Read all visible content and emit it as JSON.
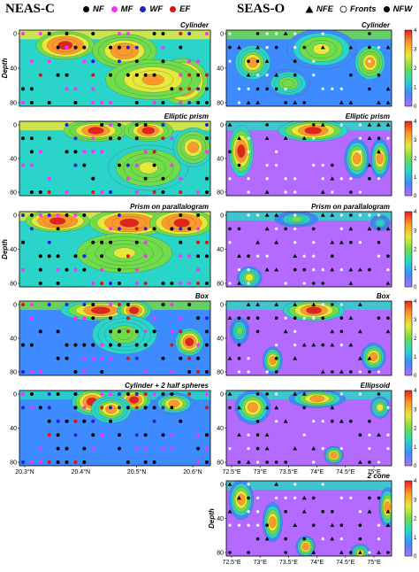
{
  "headers": {
    "left": "NEAS-C",
    "right": "SEAS-O"
  },
  "legend_left": [
    {
      "label": "NF",
      "color": "#000000",
      "icon": "filled-circle"
    },
    {
      "label": "MF",
      "color": "#ff2fff",
      "icon": "filled-circle"
    },
    {
      "label": "WF",
      "color": "#1c22d8",
      "icon": "filled-circle"
    },
    {
      "label": "EF",
      "color": "#e01010",
      "icon": "filled-circle"
    }
  ],
  "legend_right": [
    {
      "label": "NFE",
      "color": "#000000",
      "icon": "filled-triangle"
    },
    {
      "label": "Fronts",
      "color": "#ffffff",
      "icon": "open-circle"
    },
    {
      "label": "NFW",
      "color": "#000000",
      "icon": "filled-circle"
    }
  ],
  "chart_data": [
    {
      "id": "L1",
      "type": "heatmap",
      "title": "Cylinder",
      "ylabel": "Depth",
      "yticks": [
        "0",
        "40",
        "80"
      ],
      "xticks": [],
      "hotspots": [
        [
          0.15,
          0.1,
          0.18,
          0.2,
          4
        ],
        [
          0.45,
          0.15,
          0.2,
          0.25,
          3.5
        ],
        [
          0.78,
          0.5,
          0.15,
          0.35,
          4
        ],
        [
          0.55,
          0.5,
          0.3,
          0.3,
          3
        ]
      ],
      "base": 1.5,
      "markers": "L"
    },
    {
      "id": "L2",
      "type": "heatmap",
      "title": "Elliptic prism",
      "ylabel": "",
      "yticks": [
        "0",
        "40",
        "80"
      ],
      "xticks": [],
      "hotspots": [
        [
          0.3,
          0.05,
          0.2,
          0.15,
          4
        ],
        [
          0.6,
          0.05,
          0.15,
          0.15,
          4
        ],
        [
          0.55,
          0.45,
          0.25,
          0.35,
          2.5
        ],
        [
          0.85,
          0.2,
          0.12,
          0.3,
          3
        ]
      ],
      "base": 1.2,
      "markers": "L"
    },
    {
      "id": "L3",
      "type": "heatmap",
      "title": "Prism on parallalogram",
      "ylabel": "Depth",
      "yticks": [
        "0",
        "40",
        "80"
      ],
      "xticks": [],
      "hotspots": [
        [
          0.1,
          0.05,
          0.2,
          0.15,
          4
        ],
        [
          0.45,
          0.05,
          0.25,
          0.2,
          4
        ],
        [
          0.75,
          0.05,
          0.2,
          0.2,
          4
        ],
        [
          0.4,
          0.4,
          0.3,
          0.3,
          2.5
        ]
      ],
      "base": 1.6,
      "markers": "L"
    },
    {
      "id": "L4",
      "type": "heatmap",
      "title": "Box",
      "ylabel": "",
      "yticks": [
        "0",
        "40",
        "80"
      ],
      "xticks": [],
      "hotspots": [
        [
          0.3,
          0.05,
          0.25,
          0.15,
          4
        ],
        [
          0.55,
          0.05,
          0.1,
          0.15,
          4
        ],
        [
          0.85,
          0.45,
          0.08,
          0.2,
          4
        ],
        [
          0.45,
          0.3,
          0.2,
          0.3,
          2
        ]
      ],
      "base": 0.9,
      "markers": "L"
    },
    {
      "id": "L5",
      "type": "heatmap",
      "title": "Cylinder + 2 half spheres",
      "ylabel": "",
      "yticks": [
        "0",
        "40",
        "80"
      ],
      "xticks": [
        "20.3°N",
        "20.4°N",
        "20.5°N",
        "20.6°N"
      ],
      "hotspots": [
        [
          0.32,
          0.05,
          0.12,
          0.2,
          4
        ],
        [
          0.55,
          0.05,
          0.1,
          0.15,
          4
        ],
        [
          0.42,
          0.15,
          0.12,
          0.2,
          3.5
        ],
        [
          0.75,
          0.1,
          0.12,
          0.15,
          3
        ]
      ],
      "base": 0.4,
      "markers": "L"
    },
    {
      "id": "R1",
      "type": "heatmap",
      "title": "Cylinder",
      "ylabel": "",
      "yticks": [
        "0",
        "40",
        "80"
      ],
      "xticks": [],
      "hotspots": [
        [
          0.1,
          0.3,
          0.12,
          0.25,
          3
        ],
        [
          0.45,
          0.1,
          0.25,
          0.3,
          2.5
        ],
        [
          0.82,
          0.3,
          0.1,
          0.25,
          3.5
        ],
        [
          0.3,
          0.6,
          0.15,
          0.2,
          2
        ]
      ],
      "base": 0.5,
      "markers": "R"
    },
    {
      "id": "R2",
      "type": "heatmap",
      "title": "Elliptic prism",
      "ylabel": "",
      "yticks": [
        "0",
        "40",
        "80"
      ],
      "xticks": [],
      "hotspots": [
        [
          0.05,
          0.2,
          0.08,
          0.4,
          4
        ],
        [
          0.4,
          0.05,
          0.25,
          0.15,
          4
        ],
        [
          0.75,
          0.35,
          0.08,
          0.3,
          3
        ],
        [
          0.9,
          0.35,
          0.06,
          0.3,
          3
        ]
      ],
      "base": 0.3,
      "markers": "R"
    },
    {
      "id": "R3",
      "type": "heatmap",
      "title": "Prism on parallalogram",
      "ylabel": "",
      "yticks": [
        "0",
        "40",
        "80"
      ],
      "xticks": [],
      "hotspots": [
        [
          0.1,
          0.8,
          0.08,
          0.15,
          2.5
        ],
        [
          0.35,
          0.05,
          0.15,
          0.1,
          2
        ],
        [
          0.9,
          0.1,
          0.06,
          0.1,
          1.5
        ]
      ],
      "base": 0.2,
      "markers": "R"
    },
    {
      "id": "R4",
      "type": "heatmap",
      "title": "Box",
      "ylabel": "",
      "yticks": [
        "0",
        "40",
        "80"
      ],
      "xticks": [],
      "hotspots": [
        [
          0.25,
          0.7,
          0.06,
          0.2,
          3
        ],
        [
          0.42,
          0.05,
          0.22,
          0.15,
          4
        ],
        [
          0.85,
          0.65,
          0.08,
          0.2,
          3
        ],
        [
          0.05,
          0.3,
          0.06,
          0.2,
          2
        ]
      ],
      "base": 0.3,
      "markers": "R"
    },
    {
      "id": "R5",
      "type": "heatmap",
      "title": "Ellipsoid",
      "ylabel": "",
      "yticks": [
        "0",
        "40",
        "80"
      ],
      "xticks": [
        "72.5°E",
        "73°E",
        "73.5°E",
        "74°E",
        "74.5°E",
        "75°E"
      ],
      "hotspots": [
        [
          0.1,
          0.1,
          0.12,
          0.25,
          3.5
        ],
        [
          0.45,
          0.05,
          0.2,
          0.12,
          3
        ],
        [
          0.62,
          0.8,
          0.06,
          0.12,
          3
        ],
        [
          0.9,
          0.15,
          0.06,
          0.15,
          2.5
        ]
      ],
      "base": 0.2,
      "markers": "R"
    },
    {
      "id": "R6",
      "type": "heatmap",
      "title": "2 cone",
      "ylabel": "Depth",
      "yticks": [
        "0",
        "40",
        "80"
      ],
      "xticks": [
        "72.5°E",
        "73°E",
        "73.5°E",
        "74°E",
        "74.5°E",
        "75°E"
      ],
      "hotspots": [
        [
          0.05,
          0.1,
          0.08,
          0.3,
          3.5
        ],
        [
          0.25,
          0.4,
          0.06,
          0.3,
          3
        ],
        [
          0.45,
          0.8,
          0.06,
          0.15,
          3
        ],
        [
          0.78,
          0.9,
          0.06,
          0.12,
          2.5
        ],
        [
          0.95,
          0.2,
          0.05,
          0.3,
          3.5
        ]
      ],
      "base": 0.2,
      "markers": "R"
    }
  ],
  "colorbar": {
    "ticks": [
      "0",
      "1",
      "2",
      "3",
      "4"
    ],
    "colors": [
      "#b36bff",
      "#3d8bff",
      "#2ad4c8",
      "#6fdc4a",
      "#e6e83a",
      "#ff9a2a",
      "#e0241c"
    ]
  }
}
